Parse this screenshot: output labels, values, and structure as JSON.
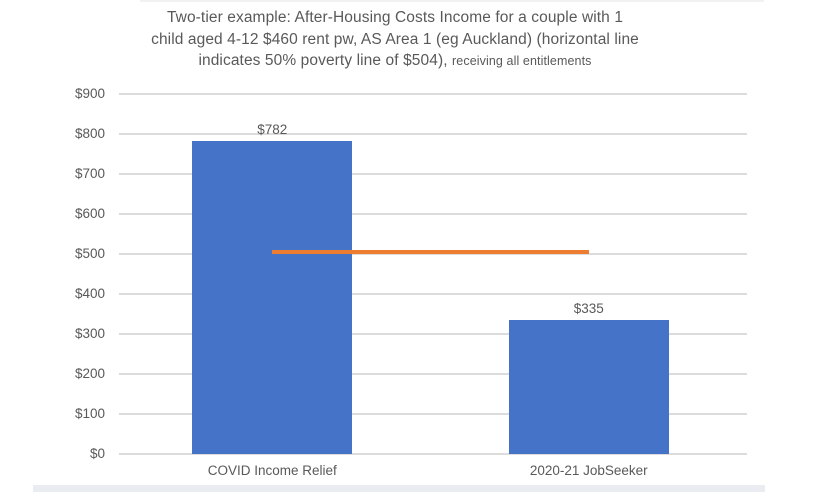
{
  "title": {
    "line1": "Two-tier example: After-Housing Costs Income for a couple with 1",
    "line2": "child aged 4-12 $460 rent pw, AS Area 1 (eg Auckland) (horizontal line",
    "line3_normal": "indicates 50% poverty line of $504),",
    "line3_small": "receiving all entitlements"
  },
  "colors": {
    "bar": "#4573c8",
    "reference_line": "#ed7d31",
    "text": "#595959",
    "gridline": "#dcdcdc"
  },
  "chart_data": {
    "type": "bar",
    "title": "Two-tier example: After-Housing Costs Income for a couple with 1 child aged 4-12 $460 rent pw, AS Area 1 (eg Auckland) (horizontal line indicates 50% poverty line of $504), receiving all entitlements",
    "categories": [
      "COVID Income Relief",
      "2020-21 JobSeeker"
    ],
    "values": [
      782,
      335
    ],
    "data_labels": [
      "$782",
      "$335"
    ],
    "reference_line": {
      "value": 504,
      "label": "50% poverty line of $504",
      "color": "#ed7d31"
    },
    "ylim": [
      0,
      900
    ],
    "ytick_step": 100,
    "ytick_labels": [
      "$0",
      "$100",
      "$200",
      "$300",
      "$400",
      "$500",
      "$600",
      "$700",
      "$800",
      "$900"
    ],
    "grid": true,
    "legend": "none",
    "bar_color": "#4573c8",
    "xlabel": "",
    "ylabel": ""
  }
}
